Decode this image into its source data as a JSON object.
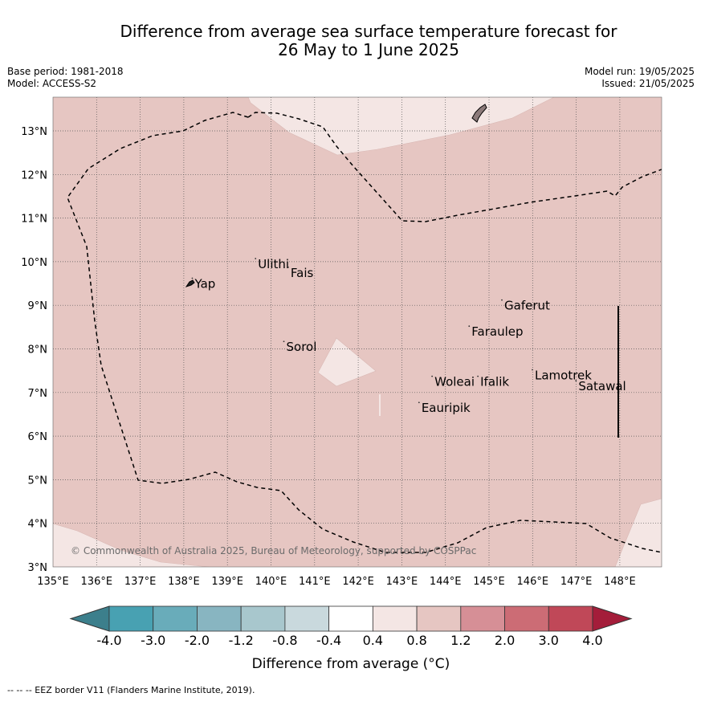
{
  "title": {
    "line1": "Difference from average sea surface temperature forecast for",
    "line2": "26 May to 1 June 2025"
  },
  "meta": {
    "base_period": "Base period: 1981-2018",
    "model": "Model: ACCESS-S2",
    "model_run": "Model run: 19/05/2025",
    "issued": "Issued: 21/05/2025"
  },
  "map": {
    "lon_range": [
      135,
      149
    ],
    "lat_range": [
      3,
      13.8
    ],
    "lon_ticks": [
      "135°E",
      "136°E",
      "137°E",
      "138°E",
      "139°E",
      "140°E",
      "141°E",
      "142°E",
      "143°E",
      "144°E",
      "145°E",
      "146°E",
      "147°E",
      "148°E"
    ],
    "lat_ticks": [
      "3°N",
      "4°N",
      "5°N",
      "6°N",
      "7°N",
      "8°N",
      "9°N",
      "10°N",
      "11°N",
      "12°N",
      "13°N"
    ],
    "copyright": "© Commonwealth of Australia 2025, Bureau of Meteorology, supported by COSPPac",
    "places": [
      {
        "name": "Yap",
        "lon": 138.25,
        "lat": 9.4
      },
      {
        "name": "Ulithi",
        "lon": 139.7,
        "lat": 9.85
      },
      {
        "name": "Fais",
        "lon": 140.45,
        "lat": 9.65
      },
      {
        "name": "Gaferut",
        "lon": 145.35,
        "lat": 8.9
      },
      {
        "name": "Faraulep",
        "lon": 144.6,
        "lat": 8.3
      },
      {
        "name": "Sorol",
        "lon": 140.35,
        "lat": 7.95
      },
      {
        "name": "Lamotrek",
        "lon": 146.05,
        "lat": 7.3
      },
      {
        "name": "Satawal",
        "lon": 147.05,
        "lat": 7.05
      },
      {
        "name": "Woleai",
        "lon": 143.75,
        "lat": 7.15
      },
      {
        "name": "Ifalik",
        "lon": 144.8,
        "lat": 7.15
      },
      {
        "name": "Eauripik",
        "lon": 143.45,
        "lat": 6.55
      }
    ]
  },
  "colorbar": {
    "label": "Difference from average (°C)",
    "ticks": [
      "-4.0",
      "-3.0",
      "-2.0",
      "-1.2",
      "-0.8",
      "-0.4",
      "0.4",
      "0.8",
      "1.2",
      "2.0",
      "3.0",
      "4.0"
    ],
    "colors": [
      "#3c7f8c",
      "#48a1b2",
      "#69acba",
      "#88b5c1",
      "#a8c7cd",
      "#c9d9dd",
      "#ffffff",
      "#f4e6e4",
      "#e6c6c2",
      "#d68f96",
      "#cc6c75",
      "#c04858",
      "#a41d3a"
    ]
  },
  "footnote": "--  --  -- EEZ border V11 (Flanders Marine Institute, 2019)."
}
